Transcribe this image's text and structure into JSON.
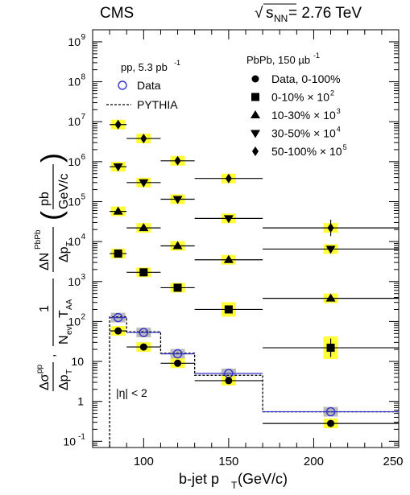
{
  "header": {
    "experiment": "CMS",
    "energy_prefix": "√",
    "energy_s": "s",
    "energy_sub": "NN",
    "energy_value": " = 2.76 TeV"
  },
  "pp_legend": {
    "title_main": "pp, 5.3 pb",
    "title_sup": "-1",
    "data_label": "Data",
    "pythia_label": "PYTHIA"
  },
  "pbpb_legend": {
    "title_main": "PbPb, 150 µb",
    "title_sup": "-1",
    "entries": [
      {
        "marker": "circle",
        "label_main": "Data, 0-100%",
        "label_sup": ""
      },
      {
        "marker": "square",
        "label_main": "0-10% × 10",
        "label_sup": "2"
      },
      {
        "marker": "triangle-up",
        "label_main": "10-30% × 10",
        "label_sup": "3"
      },
      {
        "marker": "triangle-down",
        "label_main": "30-50% × 10",
        "label_sup": "4"
      },
      {
        "marker": "diamond",
        "label_main": "50-100% × 10",
        "label_sup": "5"
      }
    ]
  },
  "eta_label": "|η| < 2",
  "xlabel": {
    "main": "b-jet p",
    "sub": "T",
    "unit": " (GeV/c)"
  },
  "ylabel": {
    "ds": "Δσ",
    "ds_sup": "pp",
    "dpt": "Δp",
    "dpt_sub": "T",
    "one": "1",
    "n": "N",
    "n_sub": "evt",
    "t": "T",
    "t_sub": "AA",
    "dn": "ΔN",
    "dn_sup": "PbPb",
    "pb": "pb",
    "gevc": "GeV/c"
  },
  "chart_data": {
    "type": "scatter",
    "x_bins": [
      [
        80,
        90
      ],
      [
        90,
        110
      ],
      [
        110,
        130
      ],
      [
        130,
        170
      ],
      [
        170,
        250
      ]
    ],
    "x": [
      85,
      100,
      120,
      150,
      210
    ],
    "xlim": [
      70,
      250
    ],
    "ylim": [
      0.07,
      2000000000
    ],
    "y_scale": "log",
    "x_ticks": [
      100,
      150,
      200,
      250
    ],
    "y_tick_labels": [
      {
        "value": 0.1,
        "base": "10",
        "exp": "-1"
      },
      {
        "value": 1,
        "base": "1",
        "exp": ""
      },
      {
        "value": 10,
        "base": "10",
        "exp": ""
      },
      {
        "value": 100,
        "base": "10",
        "exp": "2"
      },
      {
        "value": 1000,
        "base": "10",
        "exp": "3"
      },
      {
        "value": 10000,
        "base": "10",
        "exp": "4"
      },
      {
        "value": 100000,
        "base": "10",
        "exp": "5"
      },
      {
        "value": 1000000,
        "base": "10",
        "exp": "6"
      },
      {
        "value": 10000000,
        "base": "10",
        "exp": "7"
      },
      {
        "value": 100000000,
        "base": "10",
        "exp": "8"
      },
      {
        "value": 1000000000,
        "base": "10",
        "exp": "9"
      }
    ],
    "pythia": [
      130,
      55,
      16,
      4.5,
      0.55
    ],
    "series": [
      {
        "name": "Data",
        "marker": "open-circle",
        "color": "#3333cc",
        "syst_color": "#bbbbbb",
        "values": [
          125,
          53,
          15.5,
          5,
          0.55
        ]
      },
      {
        "name": "Data, 0-100%",
        "marker": "circle",
        "color": "#000000",
        "syst_color": "#ffff33",
        "values": [
          58,
          23,
          9,
          3.3,
          0.28
        ]
      },
      {
        "name": "0-10% × 10^2",
        "marker": "square",
        "color": "#000000",
        "syst_color": "#ffff33",
        "values": [
          5000,
          1700,
          700,
          200,
          22
        ]
      },
      {
        "name": "10-30% × 10^3",
        "marker": "triangle-up",
        "color": "#000000",
        "syst_color": "#ffff33",
        "values": [
          57000,
          22000,
          7800,
          3500,
          380
        ]
      },
      {
        "name": "30-50% × 10^4",
        "marker": "triangle-down",
        "color": "#000000",
        "syst_color": "#ffff33",
        "values": [
          750000,
          300000,
          115000,
          38000,
          6500
        ]
      },
      {
        "name": "50-100% × 10^5",
        "marker": "diamond",
        "color": "#000000",
        "syst_color": "#ffff33",
        "values": [
          8500000,
          3800000,
          1050000,
          380000,
          22000
        ]
      }
    ]
  }
}
